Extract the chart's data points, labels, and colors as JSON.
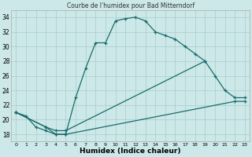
{
  "title": "Courbe de l'humidex pour Bad Mitterndorf",
  "xlabel": "Humidex (Indice chaleur)",
  "bg_color": "#cce8e8",
  "grid_color": "#aacccc",
  "line_color": "#1a6b6b",
  "xlim": [
    -0.5,
    23.5
  ],
  "ylim": [
    17.0,
    35.0
  ],
  "xticks": [
    0,
    1,
    2,
    3,
    4,
    5,
    6,
    7,
    8,
    9,
    10,
    11,
    12,
    13,
    14,
    15,
    16,
    17,
    18,
    19,
    20,
    21,
    22,
    23
  ],
  "yticks": [
    18,
    20,
    22,
    24,
    26,
    28,
    30,
    32,
    34
  ],
  "line1_x": [
    0,
    1,
    2,
    3,
    4,
    5,
    6,
    7,
    8,
    9,
    10,
    11,
    12,
    13,
    14,
    15,
    16,
    17,
    18,
    19
  ],
  "line1_y": [
    21,
    20.5,
    19,
    18.5,
    18,
    18,
    23,
    27,
    30.5,
    30.5,
    33.5,
    33.8,
    34,
    33.5,
    32,
    31.5,
    31,
    30,
    29,
    28
  ],
  "line2_x": [
    0,
    3,
    4,
    5,
    19,
    20,
    21,
    22,
    23
  ],
  "line2_y": [
    21,
    19,
    18.5,
    18.5,
    28,
    26,
    24,
    23,
    23
  ],
  "line3_x": [
    0,
    3,
    4,
    5,
    22,
    23
  ],
  "line3_y": [
    21,
    19,
    18,
    18,
    22.5,
    22.5
  ]
}
